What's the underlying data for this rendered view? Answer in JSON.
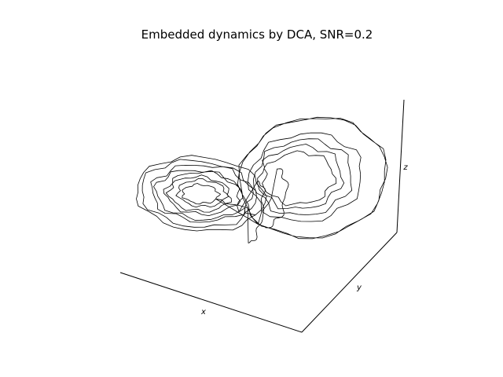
{
  "chart_data": {
    "type": "line",
    "title": "Embedded dynamics by DCA, SNR=0.2",
    "xlabel": "x",
    "ylabel": "y",
    "zlabel": "z",
    "projection": "3d",
    "grid": false,
    "ticks": false,
    "colors": {
      "line": "#000000",
      "axes": "#000000",
      "background": "#ffffff"
    }
  }
}
